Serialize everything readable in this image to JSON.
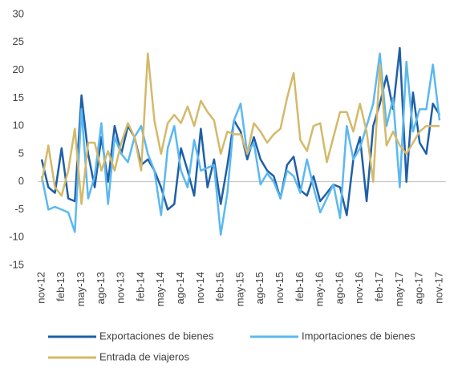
{
  "chart_data": {
    "type": "line",
    "categories": [
      "nov-12",
      null,
      null,
      "feb-13",
      null,
      null,
      "may-13",
      null,
      null,
      "ago-13",
      null,
      null,
      "nov-13",
      null,
      null,
      "feb-14",
      null,
      null,
      "may-14",
      null,
      null,
      "ago-14",
      null,
      null,
      "nov-14",
      null,
      null,
      "feb-15",
      null,
      null,
      "may-15",
      null,
      null,
      "ago-15",
      null,
      null,
      "nov-15",
      null,
      null,
      "feb-16",
      null,
      null,
      "may-16",
      null,
      null,
      "ago-16",
      null,
      null,
      "nov-16",
      null,
      null,
      "feb-17",
      null,
      null,
      "may-17",
      null,
      null,
      "ago-17",
      null,
      null,
      "nov-17"
    ],
    "series": [
      {
        "name": "Exportaciones de bienes",
        "color": "#1f5fa8",
        "values": [
          4,
          -1,
          -2,
          6,
          -3,
          -3.5,
          15.5,
          5,
          -1,
          8,
          0,
          10,
          5,
          10,
          8,
          3,
          4,
          2,
          -1,
          -5,
          -4,
          6,
          2,
          -2.5,
          9.5,
          -1,
          4,
          -4,
          3,
          11,
          9,
          4,
          8,
          4,
          2,
          1,
          -3,
          3,
          4.5,
          -1.5,
          -2.5,
          1,
          -3.5,
          -2,
          -0.5,
          -1,
          -6,
          4,
          8,
          -3.5,
          10,
          14,
          19,
          13,
          24,
          0,
          16,
          7,
          5,
          14,
          12
        ]
      },
      {
        "name": "Importaciones de bienes",
        "color": "#5bb8f0",
        "values": [
          1,
          -5,
          -4.5,
          -5,
          -5.5,
          -9,
          13,
          -3,
          1,
          10.5,
          -4,
          8,
          5,
          3.5,
          8,
          10,
          5,
          2,
          -6,
          6,
          10,
          2,
          -1,
          7.5,
          2,
          2.5,
          3,
          -9.5,
          -2,
          11,
          14,
          5,
          7,
          -0.5,
          1.5,
          0,
          -3,
          2,
          1,
          -2,
          4,
          -1,
          -5.5,
          -3,
          -0.5,
          -6.5,
          10,
          4,
          6,
          10,
          14,
          23,
          10,
          15,
          -1,
          21.5,
          9,
          13,
          13,
          21,
          11
        ]
      },
      {
        "name": "Entrada de viajeros",
        "color": "#d4b96a",
        "values": [
          0,
          6.5,
          -1,
          -2.5,
          2,
          9.5,
          -4,
          7,
          7,
          2,
          5.5,
          2,
          7,
          10.5,
          8,
          2,
          23,
          11,
          5,
          10.5,
          12,
          10.5,
          13.5,
          10,
          14.5,
          12.5,
          11,
          5,
          9,
          8.5,
          8.5,
          5,
          10.5,
          9,
          7,
          8.5,
          9.5,
          15,
          19.5,
          7.5,
          5.5,
          10,
          10.5,
          3.5,
          8,
          12.5,
          12.5,
          9,
          14,
          9,
          0,
          21,
          6.5,
          9,
          6.5,
          5,
          7,
          9,
          10,
          10,
          10
        ]
      }
    ],
    "ylim": [
      -15,
      30
    ],
    "yticks": [
      -15,
      -10,
      -5,
      0,
      5,
      10,
      15,
      20,
      25,
      30
    ],
    "legend": "bottom"
  }
}
